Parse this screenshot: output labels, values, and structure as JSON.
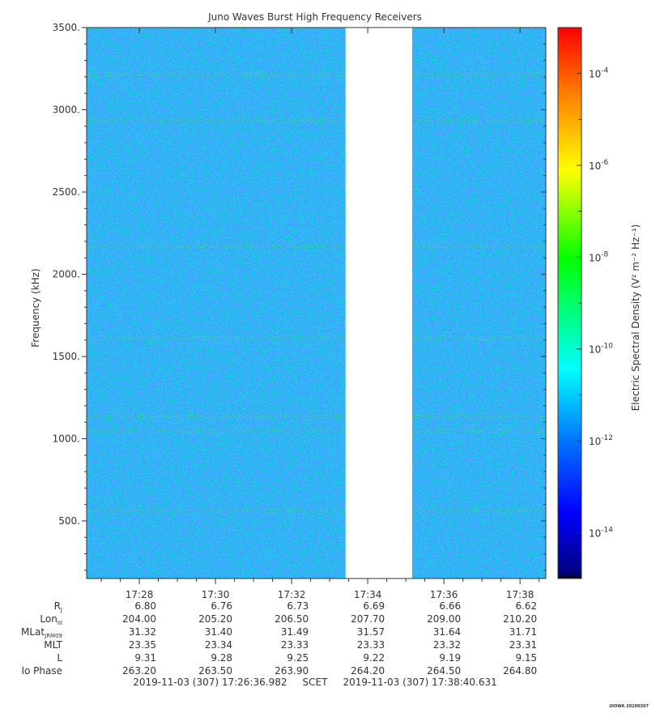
{
  "chart_data": {
    "type": "heatmap",
    "title": "Juno Waves Burst High Frequency Receivers",
    "ylabel": "Frequency (kHz)",
    "ylim": [
      150,
      3500
    ],
    "yticks": [
      "500.",
      "1000.",
      "1500.",
      "2000.",
      "2500.",
      "3000.",
      "3500."
    ],
    "yticks_values": [
      500,
      1000,
      1500,
      2000,
      2500,
      3000,
      3500
    ],
    "xticks": [
      "17:28",
      "17:30",
      "17:32",
      "17:34",
      "17:36",
      "17:38"
    ],
    "x_start": "17:26:36.982",
    "x_end": "17:38:40.631",
    "data_gap": [
      "17:33:25",
      "17:35:10"
    ],
    "emission_lines_khz": [
      565,
      1050,
      1135,
      1610,
      2170,
      2935,
      3215
    ],
    "background_level": "1e-11",
    "colorbar": {
      "label": "Electric Spectral Density (V² m⁻² Hz⁻¹)",
      "scale": "log",
      "range": [
        "1e-15",
        "1e-3"
      ],
      "ticks": [
        {
          "base": "10",
          "exp": "-4",
          "value": -4
        },
        {
          "base": "10",
          "exp": "-6",
          "value": -6
        },
        {
          "base": "10",
          "exp": "-8",
          "value": -8
        },
        {
          "base": "10",
          "exp": "-10",
          "value": -10
        },
        {
          "base": "10",
          "exp": "-12",
          "value": -12
        },
        {
          "base": "10",
          "exp": "-14",
          "value": -14
        }
      ],
      "colors": [
        "#00007f",
        "#0000ff",
        "#007fff",
        "#00ffff",
        "#00ff00",
        "#ffff00",
        "#ff7f00",
        "#ff0000"
      ]
    },
    "ephemeris": {
      "labels": [
        "R",
        "Lon",
        "MLat",
        "MLT",
        "L",
        "Io Phase"
      ],
      "subscripts": [
        "J",
        "III",
        "JRM09",
        "",
        "",
        ""
      ],
      "rows": [
        [
          "6.80",
          "6.76",
          "6.73",
          "6.69",
          "6.66",
          "6.62"
        ],
        [
          "204.00",
          "205.20",
          "206.50",
          "207.70",
          "209.00",
          "210.20"
        ],
        [
          "31.32",
          "31.40",
          "31.49",
          "31.57",
          "31.64",
          "31.71"
        ],
        [
          "23.35",
          "23.34",
          "23.33",
          "23.33",
          "23.32",
          "23.31"
        ],
        [
          "9.31",
          "9.28",
          "9.25",
          "9.22",
          "9.19",
          "9.15"
        ],
        [
          "263.20",
          "263.50",
          "263.90",
          "264.20",
          "264.50",
          "264.80"
        ]
      ]
    },
    "time_range_text": "2019-11-03 (307) 17:26:36.982     SCET     2019-11-03 (307) 17:38:40.631",
    "footer": "UIOWA 20200307"
  }
}
